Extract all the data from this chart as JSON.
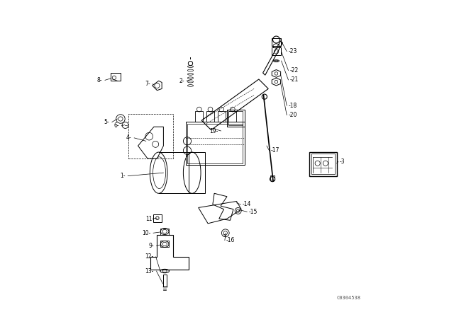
{
  "bg_color": "#ffffff",
  "line_color": "#000000",
  "fig_width": 6.4,
  "fig_height": 4.48,
  "dpi": 100,
  "watermark": "C0304538"
}
